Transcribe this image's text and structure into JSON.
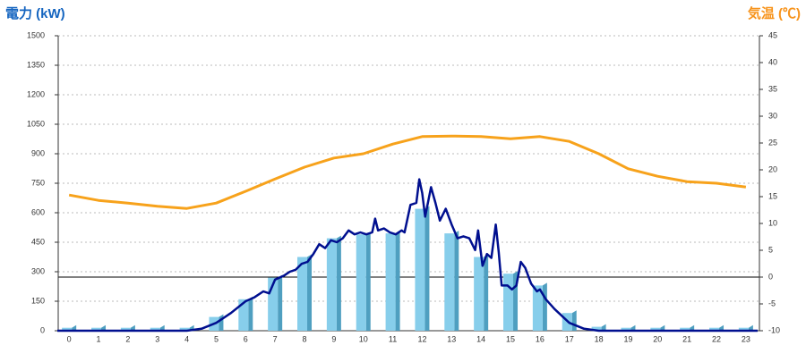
{
  "chart_data": {
    "type": "bar",
    "y_axis_label": "電力 (kW)",
    "y2_axis_label": "気温 (℃)",
    "categories": [
      "0",
      "1",
      "2",
      "3",
      "4",
      "5",
      "6",
      "7",
      "8",
      "9",
      "10",
      "11",
      "12",
      "13",
      "14",
      "15",
      "16",
      "17",
      "18",
      "19",
      "20",
      "21",
      "22",
      "23"
    ],
    "xlim": [
      -0.37,
      23.46
    ],
    "ylim": [
      0,
      1500
    ],
    "yticks": [
      0,
      150,
      300,
      450,
      600,
      750,
      900,
      1050,
      1200,
      1350,
      1500
    ],
    "y2lim": [
      -10,
      45
    ],
    "y2ticks": [
      -10,
      -5,
      0,
      5,
      10,
      15,
      20,
      25,
      30,
      35,
      40,
      45
    ],
    "grid": true,
    "zero_line_color": "#000000",
    "series": [
      {
        "type": "bar",
        "color": "#87ceeb",
        "side_color": "#4f9fc0",
        "values": [
          15,
          15,
          15,
          15,
          15,
          70,
          160,
          270,
          375,
          470,
          490,
          495,
          620,
          495,
          375,
          290,
          230,
          90,
          20,
          15,
          15,
          15,
          15,
          15
        ]
      },
      {
        "type": "line",
        "axis": "y2",
        "color": "#f7a21b",
        "values": [
          15.3,
          14.3,
          13.8,
          13.2,
          12.8,
          13.8,
          16,
          18.3,
          20.5,
          22.2,
          23,
          24.8,
          26.2,
          26.3,
          26.2,
          25.8,
          26.2,
          25.3,
          23,
          20.2,
          18.8,
          17.8,
          17.5,
          16.8
        ]
      },
      {
        "type": "line",
        "color": "#000f8f",
        "x": [
          -0.4,
          4,
          4.5,
          5,
          5.5,
          6,
          6.3,
          6.6,
          6.8,
          7,
          7.3,
          7.5,
          7.7,
          7.9,
          8.1,
          8.3,
          8.5,
          8.7,
          8.9,
          9.1,
          9.3,
          9.5,
          9.7,
          9.9,
          10.1,
          10.3,
          10.4,
          10.5,
          10.7,
          10.9,
          11.1,
          11.3,
          11.4,
          11.6,
          11.8,
          11.9,
          12,
          12.1,
          12.3,
          12.45,
          12.6,
          12.8,
          13,
          13.2,
          13.4,
          13.6,
          13.8,
          13.9,
          14.05,
          14.2,
          14.35,
          14.5,
          14.6,
          14.7,
          14.9,
          15.05,
          15.2,
          15.35,
          15.5,
          15.7,
          15.9,
          16,
          16.2,
          16.5,
          17,
          17.5,
          18,
          23.4
        ],
        "values": [
          0,
          0,
          10,
          40,
          90,
          150,
          170,
          200,
          190,
          260,
          280,
          300,
          310,
          340,
          350,
          390,
          440,
          420,
          460,
          450,
          470,
          510,
          490,
          500,
          490,
          500,
          570,
          510,
          520,
          500,
          490,
          510,
          500,
          640,
          650,
          770,
          700,
          580,
          730,
          650,
          560,
          620,
          540,
          470,
          480,
          470,
          410,
          510,
          330,
          390,
          370,
          540,
          400,
          230,
          230,
          210,
          230,
          350,
          320,
          240,
          200,
          210,
          160,
          110,
          40,
          10,
          0,
          0
        ]
      }
    ]
  }
}
